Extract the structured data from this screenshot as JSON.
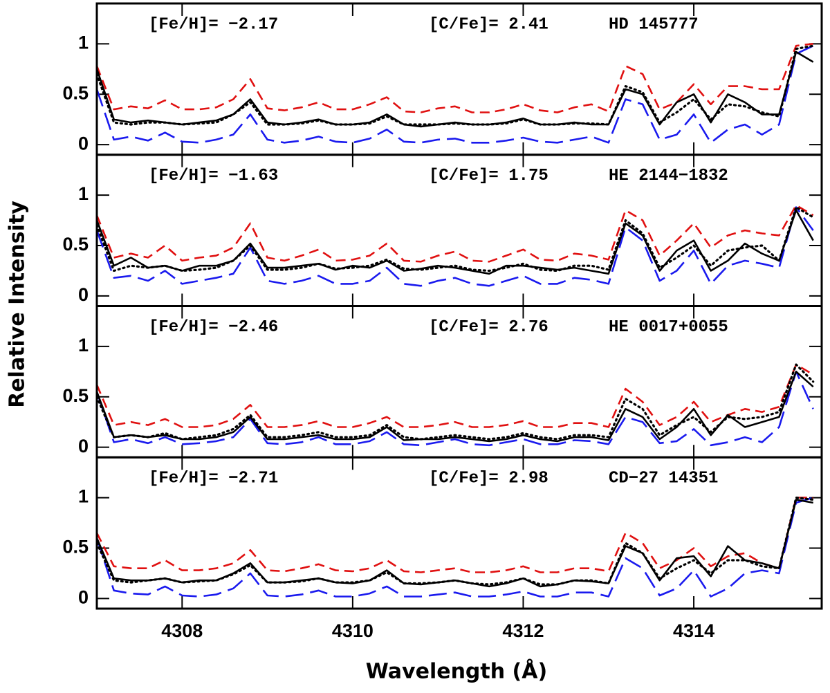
{
  "xlabel": "Wavelength (Å)",
  "ylabel": "Relative Intensity",
  "chart_data": [
    {
      "type": "line",
      "annotations": [
        "[Fe/H]= −2.17",
        "[C/Fe]= 2.41",
        "HD 145777"
      ],
      "x": [
        4307.0,
        4307.2,
        4307.4,
        4307.6,
        4307.8,
        4308.0,
        4308.2,
        4308.4,
        4308.6,
        4308.8,
        4309.0,
        4309.2,
        4309.4,
        4309.6,
        4309.8,
        4310.0,
        4310.2,
        4310.4,
        4310.6,
        4310.8,
        4311.0,
        4311.2,
        4311.4,
        4311.6,
        4311.8,
        4312.0,
        4312.2,
        4312.4,
        4312.6,
        4312.8,
        4313.0,
        4313.2,
        4313.4,
        4313.6,
        4313.8,
        4314.0,
        4314.2,
        4314.4,
        4314.6,
        4314.8,
        4315.0,
        4315.2,
        4315.4
      ],
      "xlim": [
        4307,
        4315.5
      ],
      "xticks": [
        4308,
        4310,
        4312,
        4314
      ],
      "ylim": [
        -0.1,
        1.4
      ],
      "yticks": [
        0,
        0.5,
        1
      ],
      "series": [
        {
          "color": "#e01010",
          "dash": "dashed",
          "values": [
            0.78,
            0.35,
            0.38,
            0.36,
            0.44,
            0.35,
            0.35,
            0.37,
            0.45,
            0.65,
            0.36,
            0.34,
            0.37,
            0.42,
            0.35,
            0.35,
            0.4,
            0.47,
            0.33,
            0.32,
            0.36,
            0.38,
            0.32,
            0.32,
            0.35,
            0.4,
            0.34,
            0.32,
            0.37,
            0.4,
            0.33,
            0.78,
            0.7,
            0.35,
            0.42,
            0.6,
            0.4,
            0.58,
            0.58,
            0.55,
            0.55,
            0.98,
            1.0
          ]
        },
        {
          "color": "#1a1aee",
          "dash": "longdash",
          "values": [
            0.55,
            0.05,
            0.08,
            0.04,
            0.12,
            0.03,
            0.02,
            0.05,
            0.1,
            0.3,
            0.05,
            0.02,
            0.04,
            0.08,
            0.03,
            0.02,
            0.06,
            0.15,
            0.03,
            0.02,
            0.05,
            0.06,
            0.02,
            0.02,
            0.04,
            0.07,
            0.03,
            0.02,
            0.05,
            0.08,
            0.02,
            0.45,
            0.4,
            0.05,
            0.1,
            0.3,
            0.02,
            0.15,
            0.2,
            0.1,
            0.2,
            0.9,
            0.98
          ]
        },
        {
          "color": "#000000",
          "dash": "dotted",
          "values": [
            0.7,
            0.22,
            0.2,
            0.22,
            0.22,
            0.2,
            0.21,
            0.22,
            0.3,
            0.42,
            0.2,
            0.2,
            0.21,
            0.24,
            0.2,
            0.2,
            0.21,
            0.28,
            0.2,
            0.2,
            0.2,
            0.21,
            0.2,
            0.2,
            0.21,
            0.25,
            0.2,
            0.2,
            0.21,
            0.21,
            0.2,
            0.58,
            0.52,
            0.22,
            0.32,
            0.45,
            0.25,
            0.4,
            0.38,
            0.32,
            0.28,
            0.95,
            0.98
          ]
        },
        {
          "color": "#000000",
          "dash": "solid",
          "values": [
            0.75,
            0.25,
            0.22,
            0.24,
            0.22,
            0.2,
            0.22,
            0.24,
            0.3,
            0.45,
            0.22,
            0.2,
            0.22,
            0.25,
            0.2,
            0.2,
            0.22,
            0.3,
            0.2,
            0.18,
            0.2,
            0.22,
            0.2,
            0.2,
            0.22,
            0.26,
            0.2,
            0.2,
            0.22,
            0.2,
            0.2,
            0.55,
            0.5,
            0.2,
            0.42,
            0.5,
            0.22,
            0.5,
            0.42,
            0.3,
            0.3,
            0.92,
            0.82
          ]
        }
      ]
    },
    {
      "type": "line",
      "annotations": [
        "[Fe/H]= −1.63",
        "[C/Fe]= 1.75",
        "HE 2144−1832"
      ],
      "x": [
        4307.0,
        4307.2,
        4307.4,
        4307.6,
        4307.8,
        4308.0,
        4308.2,
        4308.4,
        4308.6,
        4308.8,
        4309.0,
        4309.2,
        4309.4,
        4309.6,
        4309.8,
        4310.0,
        4310.2,
        4310.4,
        4310.6,
        4310.8,
        4311.0,
        4311.2,
        4311.4,
        4311.6,
        4311.8,
        4312.0,
        4312.2,
        4312.4,
        4312.6,
        4312.8,
        4313.0,
        4313.2,
        4313.4,
        4313.6,
        4313.8,
        4314.0,
        4314.2,
        4314.4,
        4314.6,
        4314.8,
        4315.0,
        4315.2,
        4315.4
      ],
      "xlim": [
        4307,
        4315.5
      ],
      "xticks": [
        4308,
        4310,
        4312,
        4314
      ],
      "ylim": [
        -0.1,
        1.4
      ],
      "yticks": [
        0,
        0.5,
        1
      ],
      "series": [
        {
          "color": "#e01010",
          "dash": "dashed",
          "values": [
            0.8,
            0.38,
            0.42,
            0.38,
            0.5,
            0.35,
            0.38,
            0.4,
            0.48,
            0.72,
            0.38,
            0.35,
            0.4,
            0.46,
            0.35,
            0.36,
            0.4,
            0.52,
            0.35,
            0.34,
            0.4,
            0.44,
            0.35,
            0.34,
            0.4,
            0.46,
            0.36,
            0.35,
            0.42,
            0.4,
            0.36,
            0.85,
            0.75,
            0.4,
            0.55,
            0.72,
            0.48,
            0.6,
            0.65,
            0.62,
            0.6,
            0.9,
            0.8
          ]
        },
        {
          "color": "#1a1aee",
          "dash": "longdash",
          "values": [
            0.65,
            0.18,
            0.2,
            0.15,
            0.25,
            0.12,
            0.15,
            0.18,
            0.22,
            0.48,
            0.15,
            0.12,
            0.15,
            0.2,
            0.12,
            0.12,
            0.15,
            0.28,
            0.12,
            0.1,
            0.15,
            0.18,
            0.12,
            0.1,
            0.15,
            0.2,
            0.12,
            0.12,
            0.18,
            0.16,
            0.12,
            0.68,
            0.55,
            0.15,
            0.25,
            0.45,
            0.12,
            0.3,
            0.35,
            0.32,
            0.28,
            0.88,
            0.65
          ]
        },
        {
          "color": "#000000",
          "dash": "dotted",
          "values": [
            0.7,
            0.25,
            0.3,
            0.28,
            0.3,
            0.25,
            0.26,
            0.28,
            0.35,
            0.5,
            0.26,
            0.26,
            0.28,
            0.32,
            0.27,
            0.28,
            0.3,
            0.36,
            0.27,
            0.26,
            0.28,
            0.3,
            0.26,
            0.25,
            0.28,
            0.32,
            0.26,
            0.25,
            0.3,
            0.3,
            0.26,
            0.75,
            0.62,
            0.28,
            0.38,
            0.5,
            0.3,
            0.45,
            0.48,
            0.5,
            0.35,
            0.88,
            0.78
          ]
        },
        {
          "color": "#000000",
          "dash": "solid",
          "values": [
            0.75,
            0.3,
            0.38,
            0.28,
            0.3,
            0.25,
            0.3,
            0.3,
            0.35,
            0.52,
            0.28,
            0.28,
            0.3,
            0.32,
            0.26,
            0.3,
            0.28,
            0.35,
            0.25,
            0.27,
            0.3,
            0.28,
            0.25,
            0.22,
            0.3,
            0.3,
            0.28,
            0.26,
            0.28,
            0.25,
            0.22,
            0.72,
            0.6,
            0.25,
            0.45,
            0.55,
            0.25,
            0.35,
            0.52,
            0.42,
            0.35,
            0.85,
            0.55
          ]
        }
      ]
    },
    {
      "type": "line",
      "annotations": [
        "[Fe/H]= −2.46",
        "[C/Fe]= 2.76",
        "HE 0017+0055"
      ],
      "x": [
        4307.0,
        4307.2,
        4307.4,
        4307.6,
        4307.8,
        4308.0,
        4308.2,
        4308.4,
        4308.6,
        4308.8,
        4309.0,
        4309.2,
        4309.4,
        4309.6,
        4309.8,
        4310.0,
        4310.2,
        4310.4,
        4310.6,
        4310.8,
        4311.0,
        4311.2,
        4311.4,
        4311.6,
        4311.8,
        4312.0,
        4312.2,
        4312.4,
        4312.6,
        4312.8,
        4313.0,
        4313.2,
        4313.4,
        4313.6,
        4313.8,
        4314.0,
        4314.2,
        4314.4,
        4314.6,
        4314.8,
        4315.0,
        4315.2,
        4315.4
      ],
      "xlim": [
        4307,
        4315.5
      ],
      "xticks": [
        4308,
        4310,
        4312,
        4314
      ],
      "ylim": [
        -0.1,
        1.4
      ],
      "yticks": [
        0,
        0.5,
        1
      ],
      "series": [
        {
          "color": "#e01010",
          "dash": "dashed",
          "values": [
            0.62,
            0.22,
            0.25,
            0.22,
            0.28,
            0.2,
            0.2,
            0.22,
            0.28,
            0.42,
            0.2,
            0.2,
            0.22,
            0.26,
            0.2,
            0.2,
            0.24,
            0.3,
            0.2,
            0.2,
            0.22,
            0.25,
            0.2,
            0.2,
            0.22,
            0.26,
            0.2,
            0.2,
            0.24,
            0.24,
            0.2,
            0.58,
            0.45,
            0.22,
            0.3,
            0.45,
            0.25,
            0.32,
            0.38,
            0.35,
            0.4,
            0.82,
            0.72
          ]
        },
        {
          "color": "#1a1aee",
          "dash": "longdash",
          "values": [
            0.55,
            0.05,
            0.08,
            0.04,
            0.1,
            0.03,
            0.04,
            0.06,
            0.1,
            0.28,
            0.04,
            0.03,
            0.05,
            0.1,
            0.03,
            0.03,
            0.06,
            0.15,
            0.03,
            0.02,
            0.05,
            0.08,
            0.03,
            0.02,
            0.05,
            0.08,
            0.03,
            0.03,
            0.07,
            0.06,
            0.03,
            0.3,
            0.25,
            0.04,
            0.06,
            0.18,
            0.02,
            0.05,
            0.1,
            0.05,
            0.2,
            0.75,
            0.38
          ]
        },
        {
          "color": "#000000",
          "dash": "dotted",
          "values": [
            0.5,
            0.1,
            0.12,
            0.1,
            0.14,
            0.08,
            0.1,
            0.12,
            0.18,
            0.32,
            0.1,
            0.1,
            0.12,
            0.15,
            0.1,
            0.1,
            0.12,
            0.22,
            0.1,
            0.08,
            0.1,
            0.12,
            0.1,
            0.08,
            0.1,
            0.14,
            0.1,
            0.08,
            0.12,
            0.12,
            0.1,
            0.48,
            0.38,
            0.12,
            0.22,
            0.3,
            0.15,
            0.3,
            0.28,
            0.3,
            0.35,
            0.82,
            0.65
          ]
        },
        {
          "color": "#000000",
          "dash": "solid",
          "values": [
            0.55,
            0.1,
            0.12,
            0.1,
            0.12,
            0.08,
            0.08,
            0.1,
            0.15,
            0.3,
            0.08,
            0.08,
            0.1,
            0.12,
            0.08,
            0.08,
            0.1,
            0.2,
            0.07,
            0.08,
            0.08,
            0.1,
            0.08,
            0.06,
            0.08,
            0.12,
            0.08,
            0.06,
            0.1,
            0.1,
            0.07,
            0.38,
            0.3,
            0.08,
            0.2,
            0.38,
            0.12,
            0.32,
            0.2,
            0.25,
            0.3,
            0.75,
            0.6
          ]
        }
      ]
    },
    {
      "type": "line",
      "annotations": [
        "[Fe/H]= −2.71",
        "[C/Fe]= 2.98",
        "CD−27 14351"
      ],
      "x": [
        4307.0,
        4307.2,
        4307.4,
        4307.6,
        4307.8,
        4308.0,
        4308.2,
        4308.4,
        4308.6,
        4308.8,
        4309.0,
        4309.2,
        4309.4,
        4309.6,
        4309.8,
        4310.0,
        4310.2,
        4310.4,
        4310.6,
        4310.8,
        4311.0,
        4311.2,
        4311.4,
        4311.6,
        4311.8,
        4312.0,
        4312.2,
        4312.4,
        4312.6,
        4312.8,
        4313.0,
        4313.2,
        4313.4,
        4313.6,
        4313.8,
        4314.0,
        4314.2,
        4314.4,
        4314.6,
        4314.8,
        4315.0,
        4315.2,
        4315.4
      ],
      "xlim": [
        4307,
        4315.5
      ],
      "xticks": [
        4308,
        4310,
        4312,
        4314
      ],
      "ylim": [
        -0.1,
        1.4
      ],
      "yticks": [
        0,
        0.5,
        1
      ],
      "show_xtick_labels": true,
      "series": [
        {
          "color": "#e01010",
          "dash": "dashed",
          "values": [
            0.65,
            0.32,
            0.3,
            0.3,
            0.38,
            0.28,
            0.28,
            0.3,
            0.35,
            0.48,
            0.28,
            0.27,
            0.3,
            0.34,
            0.28,
            0.27,
            0.3,
            0.38,
            0.27,
            0.26,
            0.28,
            0.3,
            0.26,
            0.26,
            0.28,
            0.32,
            0.26,
            0.26,
            0.3,
            0.3,
            0.27,
            0.65,
            0.55,
            0.3,
            0.38,
            0.5,
            0.32,
            0.42,
            0.45,
            0.35,
            0.3,
            1.0,
            1.0
          ]
        },
        {
          "color": "#1a1aee",
          "dash": "longdash",
          "values": [
            0.6,
            0.08,
            0.05,
            0.04,
            0.12,
            0.03,
            0.02,
            0.04,
            0.1,
            0.25,
            0.03,
            0.02,
            0.04,
            0.08,
            0.02,
            0.02,
            0.05,
            0.12,
            0.02,
            0.02,
            0.04,
            0.06,
            0.02,
            0.02,
            0.04,
            0.07,
            0.02,
            0.02,
            0.06,
            0.06,
            0.02,
            0.4,
            0.3,
            0.03,
            0.1,
            0.28,
            0.02,
            0.1,
            0.25,
            0.28,
            0.25,
            0.95,
            1.0
          ]
        },
        {
          "color": "#000000",
          "dash": "dotted",
          "values": [
            0.55,
            0.18,
            0.16,
            0.18,
            0.2,
            0.16,
            0.17,
            0.18,
            0.24,
            0.33,
            0.16,
            0.16,
            0.17,
            0.2,
            0.16,
            0.16,
            0.18,
            0.26,
            0.15,
            0.15,
            0.16,
            0.18,
            0.15,
            0.14,
            0.16,
            0.2,
            0.14,
            0.14,
            0.18,
            0.18,
            0.15,
            0.55,
            0.45,
            0.2,
            0.3,
            0.38,
            0.25,
            0.38,
            0.38,
            0.32,
            0.3,
            1.0,
            0.98
          ]
        },
        {
          "color": "#000000",
          "dash": "solid",
          "values": [
            0.6,
            0.2,
            0.18,
            0.18,
            0.2,
            0.16,
            0.18,
            0.18,
            0.25,
            0.35,
            0.16,
            0.16,
            0.18,
            0.2,
            0.16,
            0.15,
            0.18,
            0.28,
            0.15,
            0.14,
            0.16,
            0.18,
            0.15,
            0.12,
            0.15,
            0.2,
            0.12,
            0.14,
            0.18,
            0.17,
            0.15,
            0.52,
            0.45,
            0.18,
            0.4,
            0.42,
            0.22,
            0.52,
            0.38,
            0.35,
            0.3,
            0.98,
            0.95
          ]
        }
      ]
    }
  ]
}
